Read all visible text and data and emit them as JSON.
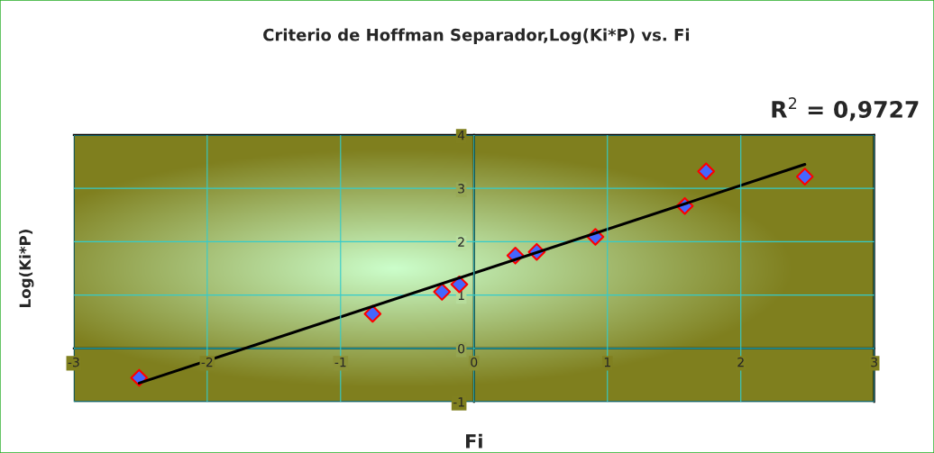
{
  "chart_data": {
    "type": "scatter",
    "title": "Criterio de Hoffman Separador,Log(Ki*P) vs. Fi",
    "xlabel": "Fi",
    "ylabel": "Log(Ki*P)",
    "annotations": [
      "R$^{2}$ = 0,9727"
    ],
    "x": [
      -2.51,
      -0.76,
      -0.24,
      -0.11,
      0.31,
      0.47,
      0.91,
      1.58,
      1.74,
      2.48
    ],
    "series": [
      {
        "color": "#4466ff",
        "marker": "diamond",
        "values": [
          -0.55,
          0.65,
          1.06,
          1.2,
          1.74,
          1.81,
          2.09,
          2.67,
          3.32,
          3.22
        ]
      },
      {
        "type": "line",
        "color": "#000000",
        "marker": "none",
        "x": [
          -2.51,
          2.48
        ],
        "values": [
          -0.65,
          3.45
        ]
      }
    ],
    "xlim": [
      -3,
      3
    ],
    "ylim": [
      -1,
      4
    ],
    "xticks": [
      -3,
      -2,
      -1,
      0,
      1,
      2,
      3
    ],
    "yticks": [
      -1,
      0,
      1,
      2,
      3,
      4
    ],
    "grid": true
  }
}
